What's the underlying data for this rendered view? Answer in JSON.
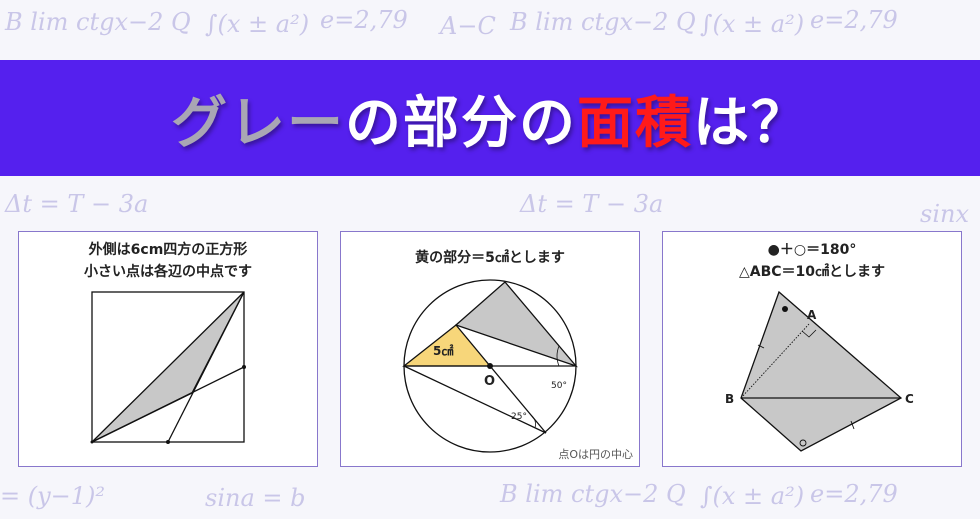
{
  "background_formulas": [
    "B lim ctgx−2 Q",
    "∫(x ± a²)",
    "e=2,79",
    "A−C",
    "Δt = T − 3a",
    "sina = b",
    "= (y−1)²",
    "sinx"
  ],
  "title": {
    "part1": "グレー",
    "part2": "の部分の",
    "part3": "面積",
    "part4": "は？"
  },
  "colors": {
    "banner": "#5520ee",
    "gray_text": "#a9a6b4",
    "red_text": "#ff1a1a",
    "shade": "#c8c8c8",
    "yellow": "#f7d67a"
  },
  "panels": [
    {
      "caption_line1": "外側は6cm四方の正方形",
      "caption_line2": "小さい点は各辺の中点です"
    },
    {
      "caption_line1": "黄の部分＝5㎠とします",
      "yellow_label": "5㎠",
      "center_label": "O",
      "angle1": "50°",
      "angle2": "25°",
      "note": "点Oは円の中心"
    },
    {
      "caption_line1": "●＋○＝180°",
      "caption_line2": "△ABC＝10㎠とします",
      "label_a": "A",
      "label_b": "B",
      "label_c": "C"
    }
  ]
}
